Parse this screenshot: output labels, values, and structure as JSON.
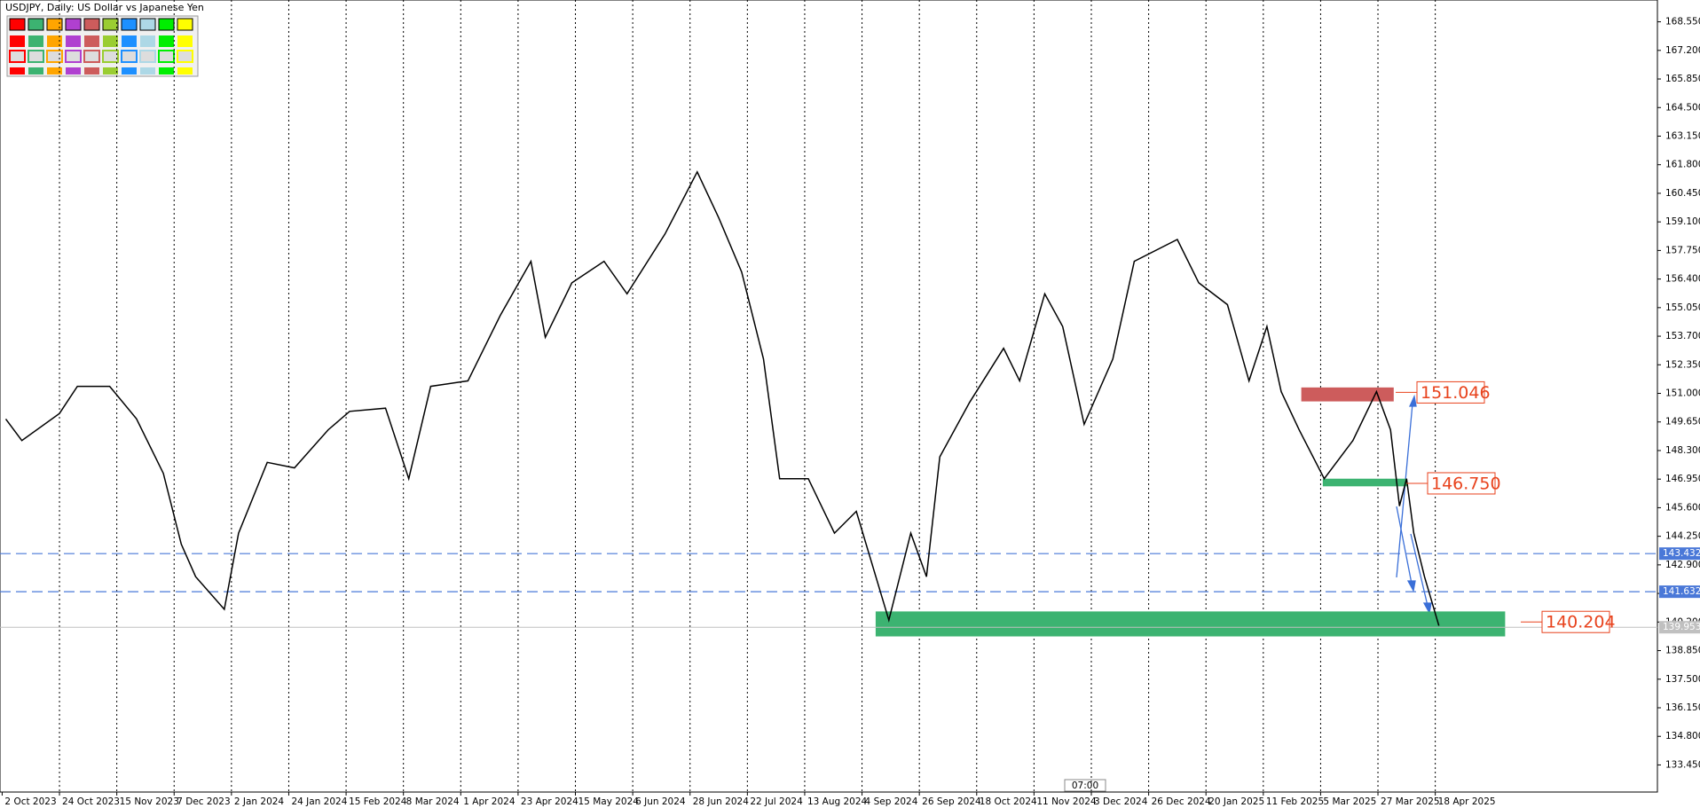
{
  "chart_data": {
    "type": "line",
    "title": "USDJPY, Daily:  US Dollar vs Japanese Yen",
    "time_label": "07:00",
    "x": [
      1,
      5.5,
      16,
      21,
      30,
      37.5,
      45,
      50,
      54,
      62,
      66,
      74,
      81.6,
      91,
      97,
      107,
      113.5,
      119.6,
      130,
      139,
      147.6,
      151.6,
      159,
      168,
      174.4,
      185,
      194,
      200,
      206.4,
      212.5,
      217,
      225,
      232.3,
      238.4,
      247.5,
      253.6,
      258,
      261.7,
      270,
      279.5,
      284,
      291,
      296,
      302,
      310,
      316,
      328,
      334,
      342,
      348,
      353,
      357,
      362,
      369,
      377,
      383.6,
      387.5,
      390,
      392,
      394,
      397,
      401
    ],
    "series": [
      {
        "color": "#000000",
        "values": [
          149.79,
          148.77,
          150.05,
          151.33,
          151.33,
          149.8,
          147.22,
          143.88,
          142.34,
          140.8,
          144.4,
          147.74,
          147.48,
          149.28,
          150.15,
          150.3,
          146.97,
          151.33,
          151.59,
          154.67,
          157.24,
          153.65,
          156.22,
          157.24,
          155.7,
          158.53,
          161.46,
          159.3,
          156.73,
          152.62,
          146.97,
          146.97,
          144.4,
          145.43,
          140.29,
          144.4,
          142.34,
          148.0,
          150.57,
          153.13,
          151.59,
          155.7,
          154.16,
          149.54,
          152.62,
          157.24,
          158.27,
          156.22,
          155.19,
          151.59,
          154.16,
          151.08,
          149.28,
          146.97,
          148.77,
          151.08,
          149.28,
          145.68,
          146.97,
          144.4,
          142.34,
          140.03
        ]
      }
    ],
    "xlim": [
      -0.6,
      462
    ],
    "ylim": [
      132.17,
      169.58
    ],
    "xticks": [
      {
        "value": 0,
        "label": "2 Oct 2023"
      },
      {
        "value": 16,
        "label": "24 Oct 2023"
      },
      {
        "value": 32,
        "label": "15 Nov 2023"
      },
      {
        "value": 48,
        "label": "7 Dec 2023"
      },
      {
        "value": 64,
        "label": "2 Jan 2024"
      },
      {
        "value": 80,
        "label": "24 Jan 2024"
      },
      {
        "value": 96,
        "label": "15 Feb 2024"
      },
      {
        "value": 112,
        "label": "8 Mar 2024"
      },
      {
        "value": 128,
        "label": "1 Apr 2024"
      },
      {
        "value": 144,
        "label": "23 Apr 2024"
      },
      {
        "value": 160,
        "label": "15 May 2024"
      },
      {
        "value": 176,
        "label": "6 Jun 2024"
      },
      {
        "value": 192,
        "label": "28 Jun 2024"
      },
      {
        "value": 208,
        "label": "22 Jul 2024"
      },
      {
        "value": 224,
        "label": "13 Aug 2024"
      },
      {
        "value": 240,
        "label": "4 Sep 2024"
      },
      {
        "value": 256,
        "label": "26 Sep 2024"
      },
      {
        "value": 272,
        "label": "18 Oct 2024"
      },
      {
        "value": 288,
        "label": "11 Nov 2024"
      },
      {
        "value": 304,
        "label": "3 Dec 2024"
      },
      {
        "value": 320,
        "label": "26 Dec 2024"
      },
      {
        "value": 336,
        "label": "20 Jan 2025"
      },
      {
        "value": 352,
        "label": "11 Feb 2025"
      },
      {
        "value": 368,
        "label": "5 Mar 2025"
      },
      {
        "value": 384,
        "label": "27 Mar 2025"
      },
      {
        "value": 400,
        "label": "18 Apr 2025"
      }
    ],
    "yticks": [
      {
        "value": 133.45,
        "label": "133.450"
      },
      {
        "value": 134.8,
        "label": "134.800"
      },
      {
        "value": 136.15,
        "label": "136.150"
      },
      {
        "value": 137.5,
        "label": "137.500"
      },
      {
        "value": 138.85,
        "label": "138.850"
      },
      {
        "value": 140.2,
        "label": "140.200"
      },
      {
        "value": 141.55,
        "label": "141.550"
      },
      {
        "value": 142.9,
        "label": "142.900"
      },
      {
        "value": 144.25,
        "label": "144.250"
      },
      {
        "value": 145.6,
        "label": "145.600"
      },
      {
        "value": 146.95,
        "label": "146.950"
      },
      {
        "value": 148.3,
        "label": "148.300"
      },
      {
        "value": 149.65,
        "label": "149.650"
      },
      {
        "value": 151,
        "label": "151.000"
      },
      {
        "value": 152.35,
        "label": "152.350"
      },
      {
        "value": 153.7,
        "label": "153.700"
      },
      {
        "value": 155.05,
        "label": "155.050"
      },
      {
        "value": 156.4,
        "label": "156.400"
      },
      {
        "value": 157.75,
        "label": "157.750"
      },
      {
        "value": 159.1,
        "label": "159.100"
      },
      {
        "value": 160.45,
        "label": "160.450"
      },
      {
        "value": 161.8,
        "label": "161.800"
      },
      {
        "value": 163.15,
        "label": "163.150"
      },
      {
        "value": 164.5,
        "label": "164.500"
      },
      {
        "value": 165.85,
        "label": "165.850"
      },
      {
        "value": 167.2,
        "label": "167.200"
      },
      {
        "value": 168.55,
        "label": "168.550"
      }
    ],
    "hlines": [
      {
        "value": 143.432,
        "label": "143.432",
        "color": "#4a78d8"
      },
      {
        "value": 141.632,
        "label": "141.632",
        "color": "#4a78d8"
      }
    ],
    "price_line": {
      "value": 139.953,
      "label": "139.953",
      "color": "#c0c0c0"
    },
    "zones": [
      {
        "x": [
          243.8,
          419.5
        ],
        "y": [
          139.52,
          140.7
        ],
        "color": "#3cb371"
      },
      {
        "x": [
          362.6,
          388.4
        ],
        "y": [
          150.62,
          151.28
        ],
        "color": "#cd5c5c"
      },
      {
        "x": [
          368.6,
          392.1
        ],
        "y": [
          146.61,
          146.97
        ],
        "color": "#3cb371"
      }
    ],
    "callouts": [
      {
        "value": 151.046,
        "label": "151.046",
        "x": 1597
      },
      {
        "value": 146.75,
        "label": "146.750",
        "x": 1609
      },
      {
        "value": 140.204,
        "label": "140.204",
        "x": 1738
      }
    ]
  }
}
